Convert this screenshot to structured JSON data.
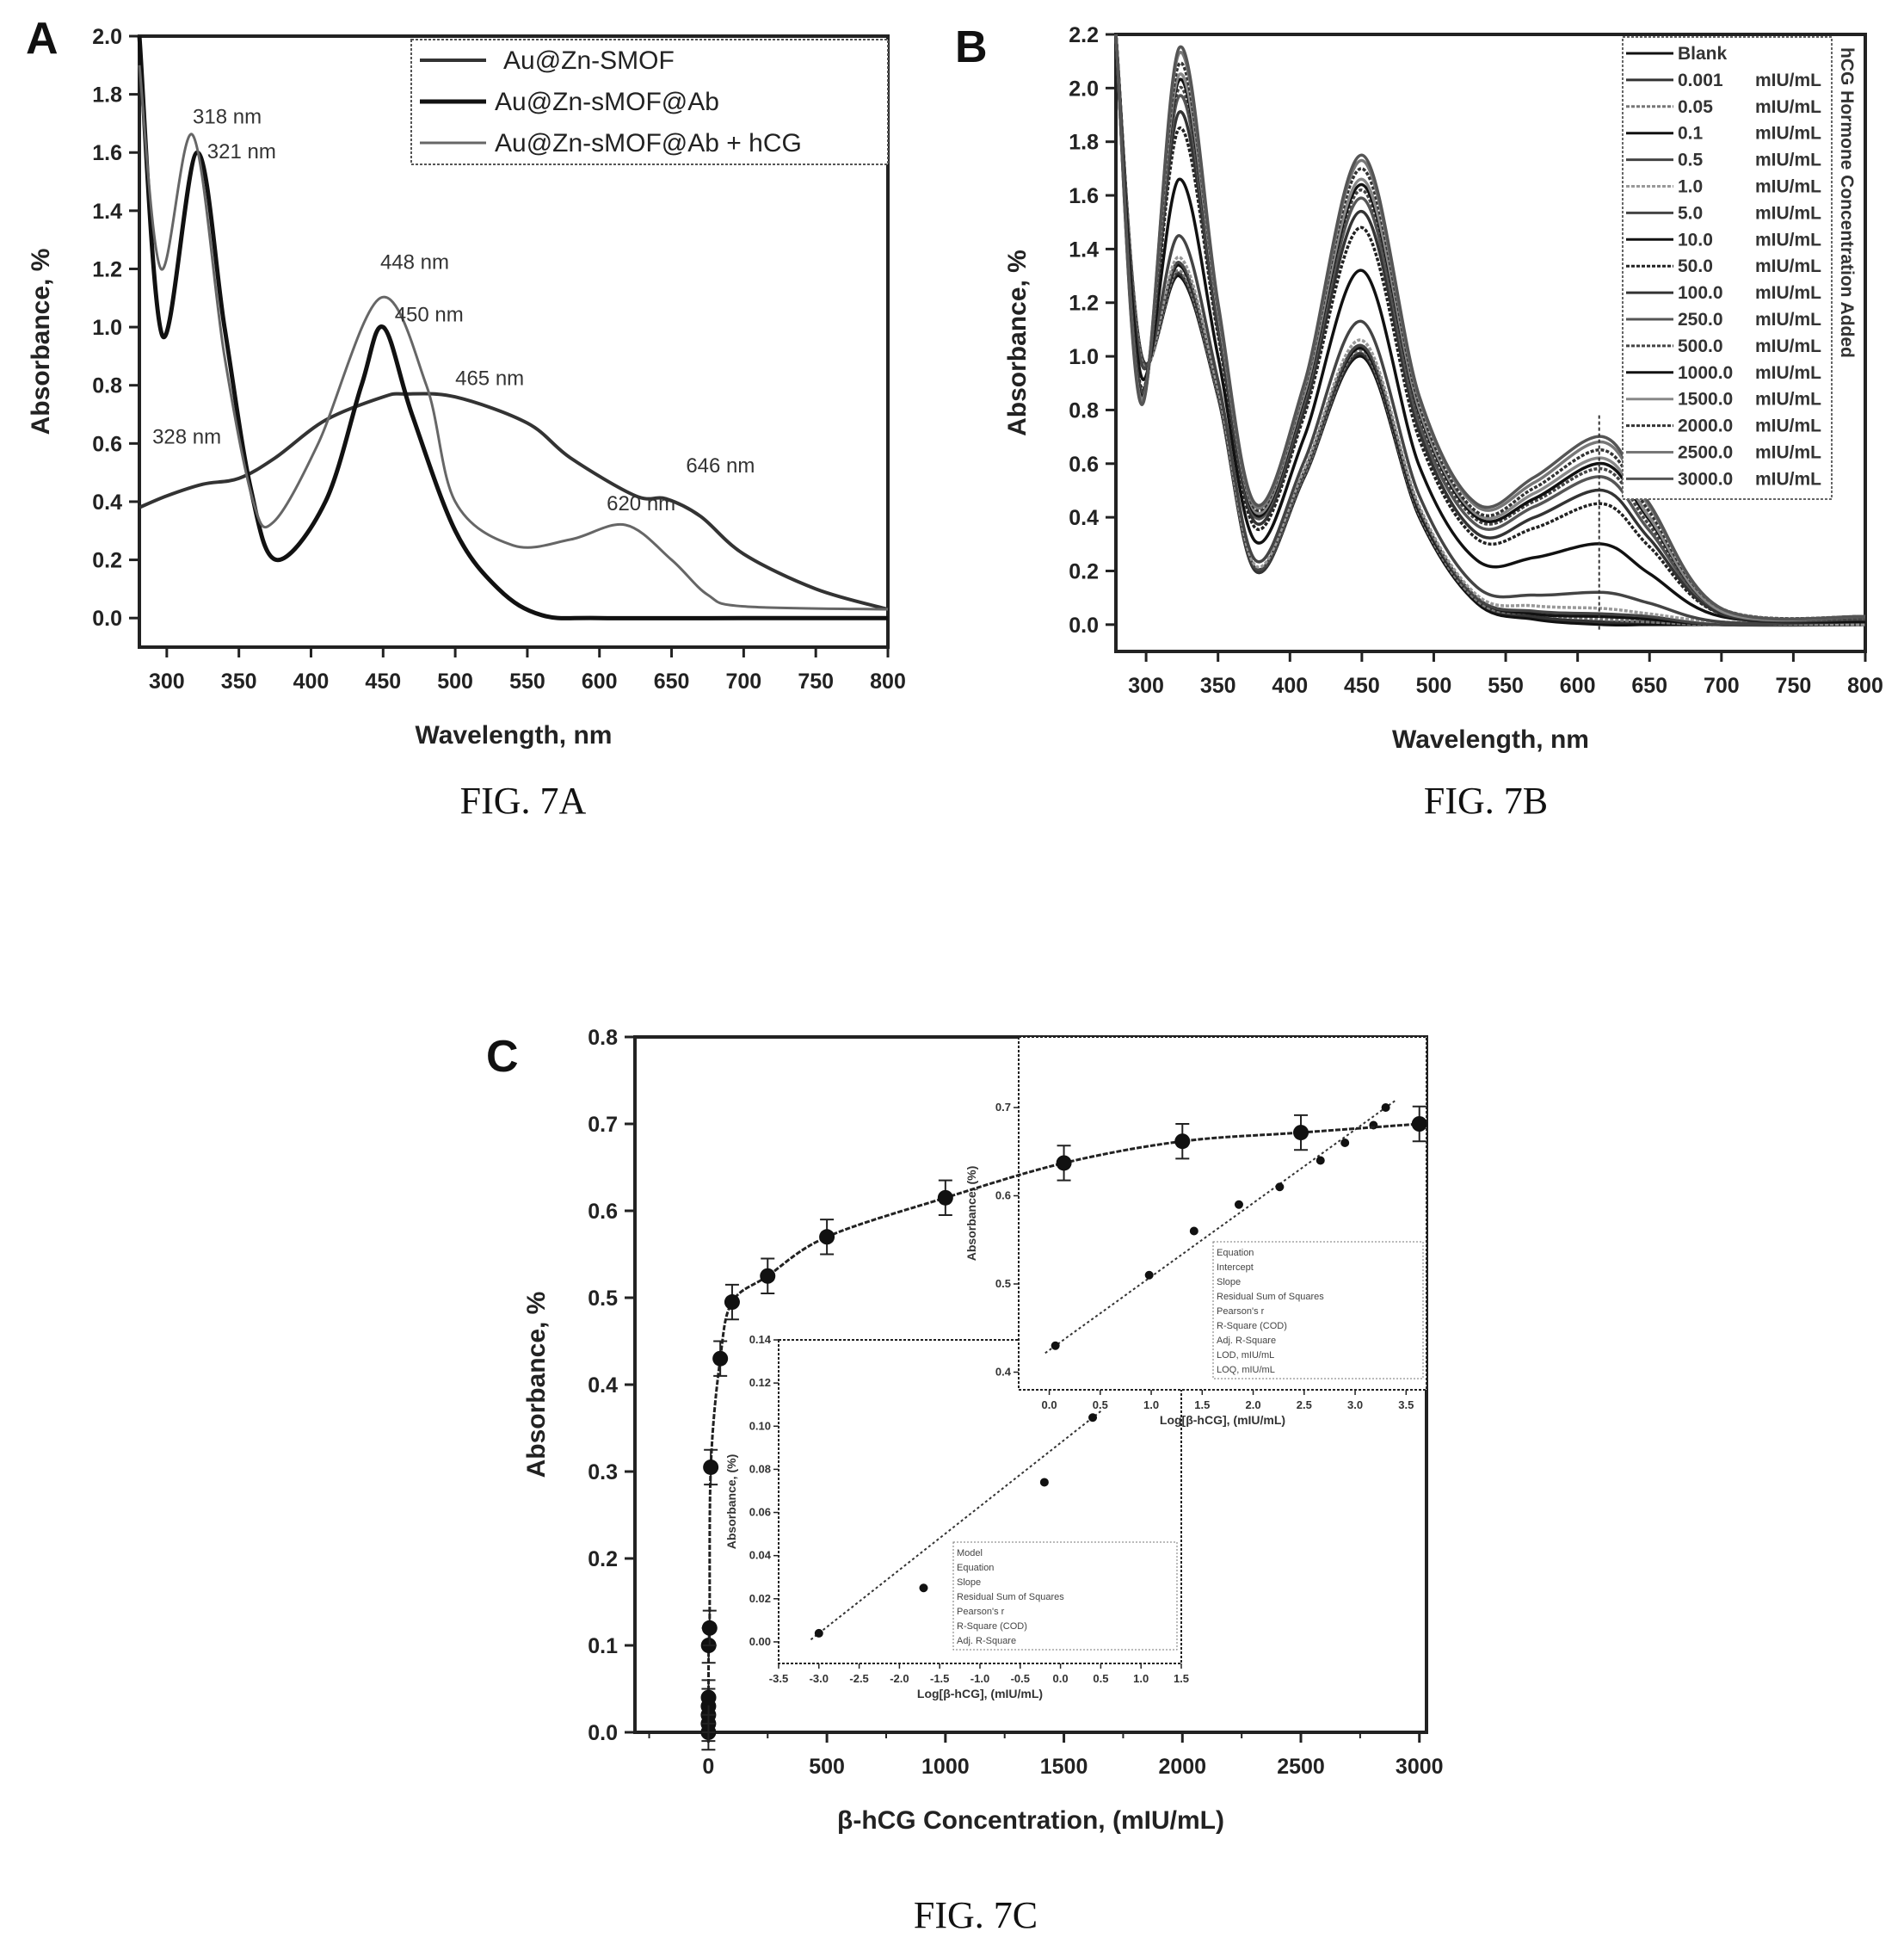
{
  "figures": {
    "A": {
      "panel_letter": "A",
      "caption": "FIG. 7A"
    },
    "B": {
      "panel_letter": "B",
      "caption": "FIG. 7B"
    },
    "C": {
      "panel_letter": "C",
      "caption": "FIG. 7C"
    }
  },
  "chart_data": [
    {
      "id": "A",
      "type": "line",
      "xlabel": "Wavelength, nm",
      "ylabel": "Absorbance, %",
      "xlim": [
        281,
        800
      ],
      "ylim": [
        -0.1,
        2.0
      ],
      "xticks": [
        300,
        350,
        400,
        450,
        500,
        550,
        600,
        650,
        700,
        750,
        800
      ],
      "yticks": [
        "0.0",
        "0.2",
        "0.4",
        "0.6",
        "0.8",
        "1.0",
        "1.2",
        "1.4",
        "1.6",
        "1.8",
        "2.0"
      ],
      "grid": false,
      "legend_position": "top-right",
      "series": [
        {
          "name": "Au@Zn-SMOF",
          "color": "#333333",
          "x": [
            281,
            300,
            325,
            350,
            375,
            410,
            450,
            465,
            500,
            550,
            580,
            625,
            646,
            670,
            700,
            750,
            800
          ],
          "y": [
            0.38,
            0.42,
            0.46,
            0.48,
            0.55,
            0.68,
            0.76,
            0.77,
            0.76,
            0.67,
            0.55,
            0.42,
            0.41,
            0.35,
            0.22,
            0.1,
            0.03
          ]
        },
        {
          "name": "Au@Zn-sMOF@Ab",
          "color": "#111111",
          "x": [
            281,
            297,
            321,
            340,
            358,
            376,
            410,
            435,
            450,
            470,
            500,
            530,
            560,
            600,
            700,
            800
          ],
          "y": [
            2.0,
            0.97,
            1.6,
            1.0,
            0.45,
            0.2,
            0.4,
            0.8,
            1.0,
            0.7,
            0.3,
            0.1,
            0.01,
            0.0,
            0.0,
            0.0
          ]
        },
        {
          "name": "Au@Zn-sMOF@Ab + hCG",
          "color": "#666666",
          "x": [
            281,
            296,
            318,
            340,
            360,
            374,
            405,
            448,
            480,
            500,
            540,
            580,
            618,
            650,
            675,
            700,
            800
          ],
          "y": [
            1.9,
            1.2,
            1.66,
            0.9,
            0.4,
            0.33,
            0.6,
            1.1,
            0.8,
            0.4,
            0.25,
            0.27,
            0.32,
            0.2,
            0.08,
            0.04,
            0.03
          ]
        }
      ],
      "annotations": [
        {
          "text": "318 nm",
          "x": 318,
          "y": 1.7
        },
        {
          "text": "321 nm",
          "x": 328,
          "y": 1.58
        },
        {
          "text": "448 nm",
          "x": 448,
          "y": 1.2
        },
        {
          "text": "450 nm",
          "x": 458,
          "y": 1.02
        },
        {
          "text": "465 nm",
          "x": 500,
          "y": 0.8
        },
        {
          "text": "328 nm",
          "x": 290,
          "y": 0.6
        },
        {
          "text": "646 nm",
          "x": 660,
          "y": 0.5
        },
        {
          "text": "620 nm",
          "x": 605,
          "y": 0.37
        }
      ]
    },
    {
      "id": "B",
      "type": "line",
      "xlabel": "Wavelength, nm",
      "ylabel": "Absorbance, %",
      "xlim": [
        279,
        800
      ],
      "ylim": [
        -0.1,
        2.2
      ],
      "xticks": [
        300,
        350,
        400,
        450,
        500,
        550,
        600,
        650,
        700,
        750,
        800
      ],
      "yticks": [
        "0.0",
        "0.2",
        "0.4",
        "0.6",
        "0.8",
        "1.0",
        "1.2",
        "1.4",
        "1.6",
        "1.8",
        "2.0",
        "2.2"
      ],
      "grid": false,
      "legend_position": "top-right",
      "legend_title": "hCG Hormone Concentration Added",
      "marker_line_x": 615,
      "x": [
        279,
        297,
        323,
        350,
        376,
        410,
        450,
        490,
        530,
        570,
        618,
        650,
        700,
        800
      ],
      "series": [
        {
          "name": "Blank",
          "unit": "",
          "y": [
            2.2,
            1.0,
            1.3,
            0.85,
            0.2,
            0.55,
            1.0,
            0.4,
            0.08,
            0.02,
            0,
            0,
            0,
            0
          ]
        },
        {
          "name": "0.001",
          "unit": "mIU/mL",
          "y": [
            2.2,
            1.0,
            1.31,
            0.85,
            0.2,
            0.55,
            1.01,
            0.41,
            0.09,
            0.03,
            0.01,
            0.01,
            0,
            0
          ]
        },
        {
          "name": "0.05",
          "unit": "mIU/mL",
          "y": [
            2.2,
            0.99,
            1.32,
            0.86,
            0.21,
            0.56,
            1.02,
            0.41,
            0.09,
            0.04,
            0.02,
            0.01,
            0,
            0
          ]
        },
        {
          "name": "0.1",
          "unit": "mIU/mL",
          "y": [
            2.2,
            0.99,
            1.34,
            0.87,
            0.21,
            0.57,
            1.03,
            0.42,
            0.1,
            0.04,
            0.03,
            0.02,
            0,
            0
          ]
        },
        {
          "name": "0.5",
          "unit": "mIU/mL",
          "y": [
            2.2,
            0.99,
            1.35,
            0.87,
            0.21,
            0.57,
            1.04,
            0.43,
            0.1,
            0.05,
            0.04,
            0.03,
            0,
            0
          ]
        },
        {
          "name": "1.0",
          "unit": "mIU/mL",
          "y": [
            2.2,
            0.98,
            1.37,
            0.88,
            0.22,
            0.58,
            1.06,
            0.44,
            0.11,
            0.07,
            0.06,
            0.04,
            0.01,
            0
          ]
        },
        {
          "name": "5.0",
          "unit": "mIU/mL",
          "y": [
            2.2,
            0.97,
            1.45,
            0.91,
            0.24,
            0.61,
            1.13,
            0.48,
            0.14,
            0.11,
            0.12,
            0.08,
            0.01,
            0.01
          ]
        },
        {
          "name": "10.0",
          "unit": "mIU/mL",
          "y": [
            2.2,
            0.92,
            1.66,
            1.0,
            0.31,
            0.7,
            1.32,
            0.59,
            0.24,
            0.25,
            0.3,
            0.19,
            0.03,
            0.01
          ]
        },
        {
          "name": "50.0",
          "unit": "mIU/mL",
          "y": [
            2.2,
            0.88,
            1.85,
            1.08,
            0.36,
            0.78,
            1.48,
            0.69,
            0.32,
            0.36,
            0.45,
            0.29,
            0.04,
            0.02
          ]
        },
        {
          "name": "100.0",
          "unit": "mIU/mL",
          "y": [
            2.2,
            0.87,
            1.91,
            1.1,
            0.38,
            0.8,
            1.54,
            0.72,
            0.34,
            0.4,
            0.5,
            0.32,
            0.04,
            0.02
          ]
        },
        {
          "name": "250.0",
          "unit": "mIU/mL",
          "y": [
            2.2,
            0.86,
            1.97,
            1.13,
            0.4,
            0.83,
            1.59,
            0.75,
            0.37,
            0.44,
            0.55,
            0.35,
            0.05,
            0.02
          ]
        },
        {
          "name": "500.0",
          "unit": "mIU/mL",
          "y": [
            2.2,
            0.85,
            2.0,
            1.14,
            0.41,
            0.84,
            1.62,
            0.77,
            0.39,
            0.46,
            0.58,
            0.37,
            0.05,
            0.02
          ]
        },
        {
          "name": "1000.0",
          "unit": "mIU/mL",
          "y": [
            2.2,
            0.85,
            2.03,
            1.15,
            0.41,
            0.85,
            1.64,
            0.79,
            0.4,
            0.47,
            0.6,
            0.39,
            0.05,
            0.03
          ]
        },
        {
          "name": "1500.0",
          "unit": "mIU/mL",
          "y": [
            2.2,
            0.84,
            2.05,
            1.16,
            0.42,
            0.86,
            1.66,
            0.8,
            0.41,
            0.49,
            0.62,
            0.4,
            0.05,
            0.03
          ]
        },
        {
          "name": "2000.0",
          "unit": "mIU/mL",
          "y": [
            2.2,
            0.83,
            2.09,
            1.18,
            0.43,
            0.88,
            1.7,
            0.82,
            0.42,
            0.51,
            0.65,
            0.42,
            0.06,
            0.03
          ]
        },
        {
          "name": "2500.0",
          "unit": "mIU/mL",
          "y": [
            2.2,
            0.83,
            2.13,
            1.19,
            0.44,
            0.89,
            1.73,
            0.84,
            0.44,
            0.53,
            0.68,
            0.44,
            0.06,
            0.03
          ]
        },
        {
          "name": "3000.0",
          "unit": "mIU/mL",
          "y": [
            2.2,
            0.82,
            2.15,
            1.2,
            0.45,
            0.9,
            1.75,
            0.85,
            0.45,
            0.55,
            0.7,
            0.45,
            0.06,
            0.03
          ]
        }
      ]
    },
    {
      "id": "C",
      "type": "scatter",
      "xlabel": "β-hCG Concentration, (mIU/mL)",
      "ylabel": "Absorbance, %",
      "xlim": [
        -310,
        3030
      ],
      "ylim": [
        0.0,
        0.8
      ],
      "xticks": [
        0,
        500,
        1000,
        1500,
        2000,
        2500,
        3000
      ],
      "yticks": [
        "0.0",
        "0.1",
        "0.2",
        "0.3",
        "0.4",
        "0.5",
        "0.6",
        "0.7",
        "0.8"
      ],
      "grid": false,
      "error_bar": 0.02,
      "x": [
        0,
        0.001,
        0.05,
        0.1,
        0.5,
        1,
        5,
        10,
        50,
        100,
        250,
        500,
        1000,
        1500,
        2000,
        2500,
        3000
      ],
      "y": [
        0.0,
        0.01,
        0.02,
        0.03,
        0.04,
        0.1,
        0.12,
        0.305,
        0.43,
        0.495,
        0.525,
        0.57,
        0.615,
        0.655,
        0.68,
        0.69,
        0.7
      ],
      "insets": [
        {
          "position": "upper-right",
          "xlabel": "Log[β-hCG], (mIU/mL)",
          "ylabel": "Absorbance, (%)",
          "xlim": [
            -0.3,
            3.7
          ],
          "ylim": [
            0.38,
            0.78
          ],
          "xticks": [
            "0.0",
            "0.5",
            "1.0",
            "1.5",
            "2.0",
            "2.5",
            "3.0",
            "3.5"
          ],
          "yticks": [
            "0.4",
            "0.5",
            "0.6",
            "0.7"
          ],
          "x": [
            0.06,
            0.98,
            1.42,
            1.86,
            2.26,
            2.66,
            2.9,
            3.18,
            3.3
          ],
          "y": [
            0.43,
            0.51,
            0.56,
            0.59,
            0.61,
            0.64,
            0.66,
            0.68,
            0.7
          ],
          "fit_table_rows": [
            "Equation",
            "Intercept",
            "Slope",
            "Residual Sum of Squares",
            "Pearson's r",
            "R-Square (COD)",
            "Adj. R-Square",
            "LOD, mIU/mL",
            "LOQ, mIU/mL"
          ]
        },
        {
          "position": "lower-left",
          "xlabel": "Log[β-hCG], (mIU/mL)",
          "ylabel": "Absorbance, (%)",
          "xlim": [
            -3.5,
            1.5
          ],
          "ylim": [
            -0.01,
            0.14
          ],
          "xticks": [
            "-3.5",
            "-3.0",
            "-2.5",
            "-2.0",
            "-1.5",
            "-1.0",
            "-0.5",
            "0.0",
            "0.5",
            "1.0",
            "1.5"
          ],
          "yticks": [
            "0.00",
            "0.02",
            "0.04",
            "0.06",
            "0.08",
            "0.10",
            "0.12",
            "0.14"
          ],
          "x": [
            -3.0,
            -1.7,
            -0.2,
            0.4
          ],
          "y": [
            0.004,
            0.025,
            0.074,
            0.104
          ],
          "fit_table_rows": [
            "Model",
            "Equation",
            "Slope",
            "Residual Sum of Squares",
            "Pearson's r",
            "R-Square (COD)",
            "Adj. R-Square"
          ]
        }
      ]
    }
  ]
}
